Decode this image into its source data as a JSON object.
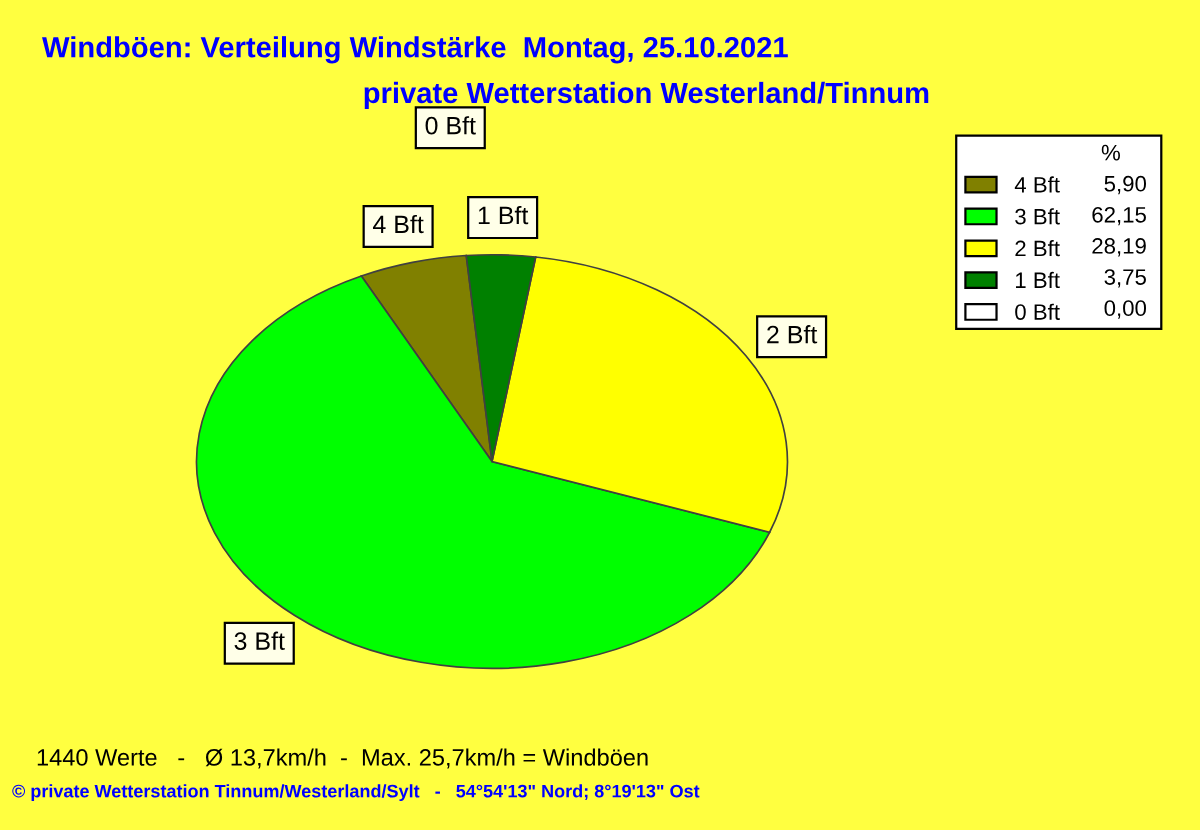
{
  "chart_data": {
    "type": "pie",
    "title": "Windböen: Verteilung Windstärke  Montag, 25.10.2021",
    "subtitle": "private Wetterstation Westerland/Tinnum",
    "categories": [
      "4 Bft",
      "3 Bft",
      "2 Bft",
      "1 Bft",
      "0 Bft"
    ],
    "values": [
      5.9,
      62.15,
      28.19,
      3.75,
      0.0
    ],
    "value_labels": [
      "5,90",
      "62,15",
      "28,19",
      "3,75",
      "0,00"
    ],
    "colors": [
      "#808000",
      "#00ff00",
      "#ffff00",
      "#008000",
      "#ffffff"
    ],
    "legend": "top right",
    "legend_title": "%",
    "annotations": [
      "1440 Werte   -   Ø 13,7km/h  -  Max. 25,7km/h = Windböen",
      "© private Wetterstation Tinnum/Westerland/Sylt   -   54°54'13\" Nord; 8°19'13\" Ost"
    ]
  }
}
